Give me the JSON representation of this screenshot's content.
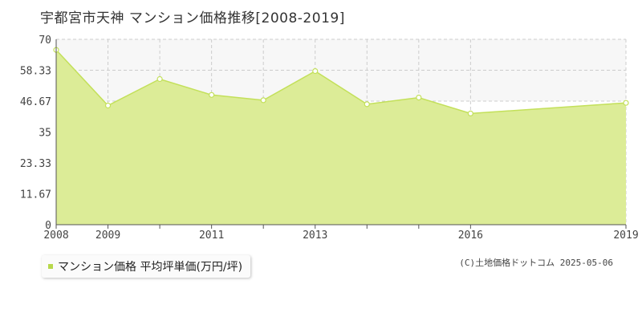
{
  "page_title": "宇都宮市天神 マンション価格推移[2008-2019]",
  "legend_label": "マンション価格 平均坪単価(万円/坪)",
  "credit": "(C)土地価格ドットコム 2025-05-06",
  "colors": {
    "area_fill": "#dcec97",
    "line": "#c3e05a",
    "marker_fill": "#ffffff",
    "grid": "#cccccc",
    "band": "#f7f7f7"
  },
  "chart_data": {
    "type": "area",
    "title": "宇都宮市天神 マンション価格推移[2008-2019]",
    "xlim": [
      2008,
      2019
    ],
    "ylim": [
      0,
      70
    ],
    "x_tick_labels": [
      "2008",
      "2009",
      "2011",
      "2013",
      "2016",
      "2019"
    ],
    "y_tick_labels": [
      "70",
      "58.33",
      "46.67",
      "35",
      "23.33",
      "11.67",
      "0"
    ],
    "grid": true,
    "series": [
      {
        "name": "マンション価格 平均坪単価(万円/坪)",
        "points": [
          {
            "x": 2008,
            "y": 66
          },
          {
            "x": 2009,
            "y": 45
          },
          {
            "x": 2010,
            "y": 55
          },
          {
            "x": 2011,
            "y": 49
          },
          {
            "x": 2012,
            "y": 47
          },
          {
            "x": 2013,
            "y": 58
          },
          {
            "x": 2014,
            "y": 45.5
          },
          {
            "x": 2015,
            "y": 48
          },
          {
            "x": 2016,
            "y": 42
          },
          {
            "x": 2019,
            "y": 46
          }
        ]
      }
    ]
  }
}
